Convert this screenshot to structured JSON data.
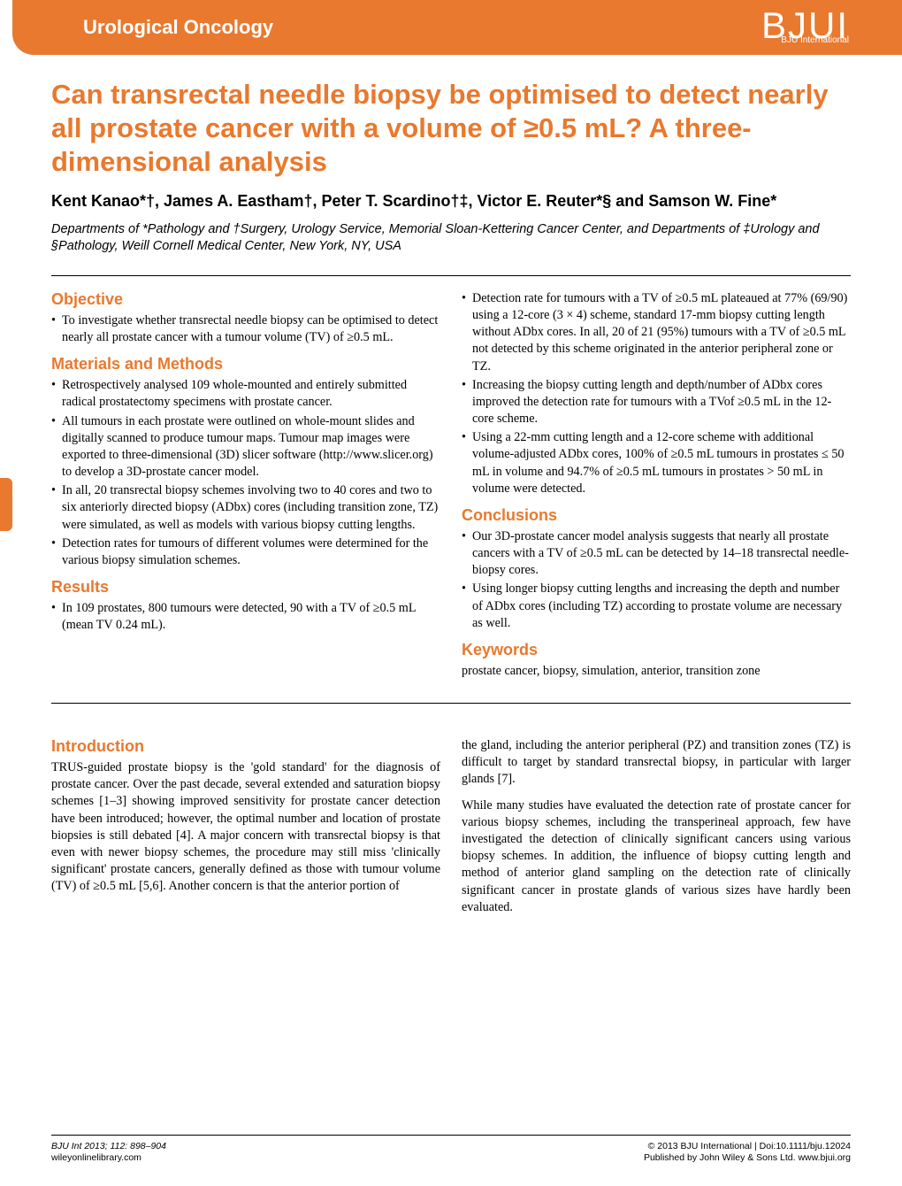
{
  "header": {
    "section": "Urological Oncology",
    "logo_main": "BJUI",
    "logo_sub": "BJU International"
  },
  "title": "Can transrectal needle biopsy be optimised to detect nearly all prostate cancer with a volume of ≥0.5 mL? A three-dimensional analysis",
  "authors": "Kent Kanao*†, James A. Eastham†, Peter T. Scardino†‡, Victor E. Reuter*§ and Samson W. Fine*",
  "affiliations": "Departments of *Pathology and †Surgery, Urology Service, Memorial Sloan-Kettering Cancer Center, and Departments of ‡Urology and §Pathology, Weill Cornell Medical Center, New York, NY, USA",
  "abstract": {
    "objective_h": "Objective",
    "objective": [
      "To investigate whether transrectal needle biopsy can be optimised to detect nearly all prostate cancer with a tumour volume (TV) of ≥0.5 mL."
    ],
    "methods_h": "Materials and Methods",
    "methods": [
      "Retrospectively analysed 109 whole-mounted and entirely submitted radical prostatectomy specimens with prostate cancer.",
      "All tumours in each prostate were outlined on whole-mount slides and digitally scanned to produce tumour maps. Tumour map images were exported to three-dimensional (3D) slicer software (http://www.slicer.org) to develop a 3D-prostate cancer model.",
      "In all, 20 transrectal biopsy schemes involving two to 40 cores and two to six anteriorly directed biopsy (ADbx) cores (including transition zone, TZ) were simulated, as well as models with various biopsy cutting lengths.",
      "Detection rates for tumours of different volumes were determined for the various biopsy simulation schemes."
    ],
    "results_h": "Results",
    "results_left": [
      "In 109 prostates, 800 tumours were detected, 90 with a TV of ≥0.5 mL (mean TV 0.24 mL)."
    ],
    "results_right": [
      "Detection rate for tumours with a TV of ≥0.5 mL plateaued at 77% (69/90) using a 12-core (3 × 4) scheme, standard 17-mm biopsy cutting length without ADbx cores. In all, 20 of 21 (95%) tumours with a TV of ≥0.5 mL not detected by this scheme originated in the anterior peripheral zone or TZ.",
      "Increasing the biopsy cutting length and depth/number of ADbx cores improved the detection rate for tumours with a TVof ≥0.5 mL in the 12-core scheme.",
      "Using a 22-mm cutting length and a 12-core scheme with additional volume-adjusted ADbx cores, 100% of ≥0.5 mL tumours in prostates ≤ 50 mL in volume and 94.7% of ≥0.5 mL tumours in prostates > 50 mL in volume were detected."
    ],
    "conclusions_h": "Conclusions",
    "conclusions": [
      "Our 3D-prostate cancer model analysis suggests that nearly all prostate cancers with a TV of ≥0.5 mL can be detected by 14–18 transrectal needle-biopsy cores.",
      "Using longer biopsy cutting lengths and increasing the depth and number of ADbx cores (including TZ) according to prostate volume are necessary as well."
    ],
    "keywords_h": "Keywords",
    "keywords": "prostate cancer, biopsy, simulation, anterior, transition zone"
  },
  "body": {
    "intro_h": "Introduction",
    "intro_left": "TRUS-guided prostate biopsy is the 'gold standard' for the diagnosis of prostate cancer. Over the past decade, several extended and saturation biopsy schemes [1–3] showing improved sensitivity for prostate cancer detection have been introduced; however, the optimal number and location of prostate biopsies is still debated [4]. A major concern with transrectal biopsy is that even with newer biopsy schemes, the procedure may still miss 'clinically significant' prostate cancers, generally defined as those with tumour volume (TV) of ≥0.5 mL [5,6]. Another concern is that the anterior portion of",
    "intro_right1": "the gland, including the anterior peripheral (PZ) and transition zones (TZ) is difficult to target by standard transrectal biopsy, in particular with larger glands [7].",
    "intro_right2": "While many studies have evaluated the detection rate of prostate cancer for various biopsy schemes, including the transperineal approach, few have investigated the detection of clinically significant cancers using various biopsy schemes. In addition, the influence of biopsy cutting length and method of anterior gland sampling on the detection rate of clinically significant cancer in prostate glands of various sizes have hardly been evaluated."
  },
  "footer": {
    "left1": "BJU Int 2013; 112: 898–904",
    "left2": "wileyonlinelibrary.com",
    "right1": "© 2013 BJU International | Doi:10.1111/bju.12024",
    "right2": "Published by John Wiley & Sons Ltd. www.bjui.org"
  },
  "colors": {
    "accent": "#e8792e",
    "text": "#000000",
    "bg": "#ffffff"
  }
}
